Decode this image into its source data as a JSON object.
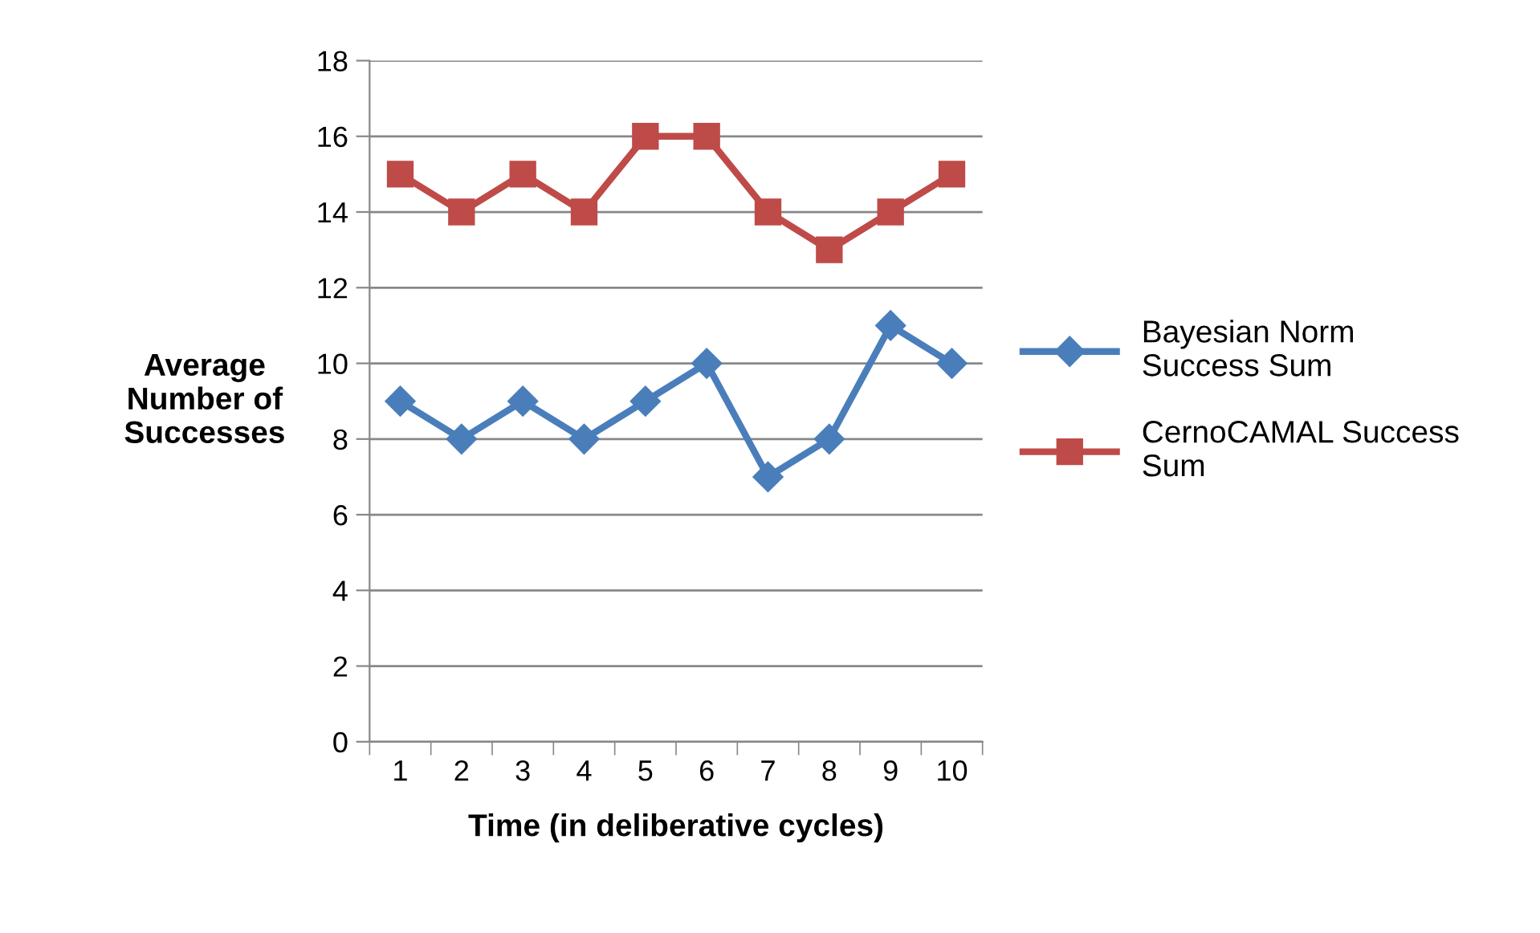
{
  "chart_data": {
    "type": "line",
    "xlabel": "Time (in deliberative cycles)",
    "ylabel": "Average\nNumber of\nSuccesses",
    "categories": [
      "1",
      "2",
      "3",
      "4",
      "5",
      "6",
      "7",
      "8",
      "9",
      "10"
    ],
    "series": [
      {
        "name": "Bayesian Norm\nSuccess Sum",
        "color": "#4a7ebb",
        "marker": "diamond",
        "values": [
          9,
          8,
          9,
          8,
          9,
          10,
          7,
          8,
          11,
          10
        ]
      },
      {
        "name": "CernoCAMAL Success\nSum",
        "color": "#be4b48",
        "marker": "square",
        "values": [
          15,
          14,
          15,
          14,
          16,
          16,
          14,
          13,
          14,
          15
        ]
      }
    ],
    "ylim": [
      0,
      18
    ],
    "yticks": [
      0,
      2,
      4,
      6,
      8,
      10,
      12,
      14,
      16,
      18
    ],
    "grid": "y",
    "legend": "right",
    "line_style": "solid"
  }
}
